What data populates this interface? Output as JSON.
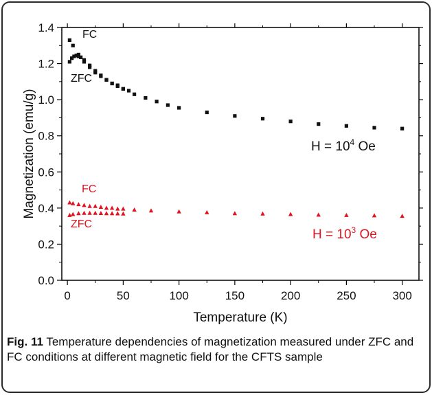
{
  "chart_data": {
    "type": "scatter",
    "xlabel": "Temperature (K)",
    "ylabel": "Magnetization (emu/g)",
    "xlim": [
      -5,
      315
    ],
    "ylim": [
      0.0,
      1.4
    ],
    "xticks": [
      0,
      50,
      100,
      150,
      200,
      250,
      300
    ],
    "yticks": [
      0.0,
      0.2,
      0.4,
      0.6,
      0.8,
      1.0,
      1.2,
      1.4
    ],
    "xtick_labels": [
      "0",
      "50",
      "100",
      "150",
      "200",
      "250",
      "300"
    ],
    "ytick_labels": [
      "0.0",
      "0.2",
      "0.4",
      "0.6",
      "0.8",
      "1.0",
      "1.2",
      "1.4"
    ],
    "grid": false,
    "field_labels": {
      "high": {
        "base": "H = 10",
        "exp": "4",
        "unit": " Oe"
      },
      "low": {
        "base": "H = 10",
        "exp": "3",
        "unit": " Oe"
      }
    },
    "series": [
      {
        "name": "FC",
        "group": "high",
        "marker": "square",
        "color": "#111111",
        "x": [
          2,
          5,
          10,
          15,
          20,
          25,
          30,
          35,
          40,
          45,
          50,
          55,
          60,
          70,
          80,
          90,
          100,
          125,
          150,
          175,
          200,
          225,
          250,
          275,
          300
        ],
        "y": [
          1.33,
          1.3,
          1.25,
          1.21,
          1.18,
          1.15,
          1.13,
          1.11,
          1.09,
          1.08,
          1.06,
          1.05,
          1.03,
          1.01,
          0.99,
          0.97,
          0.955,
          0.93,
          0.91,
          0.895,
          0.88,
          0.865,
          0.855,
          0.845,
          0.84
        ]
      },
      {
        "name": "ZFC",
        "group": "high",
        "marker": "square",
        "color": "#111111",
        "x": [
          2,
          4,
          6,
          8,
          10,
          12,
          15,
          20,
          25,
          30,
          35,
          40,
          45,
          50
        ],
        "y": [
          1.21,
          1.23,
          1.24,
          1.245,
          1.24,
          1.235,
          1.22,
          1.19,
          1.16,
          1.135,
          1.11,
          1.09,
          1.075,
          1.06
        ]
      },
      {
        "name": "FC",
        "group": "low",
        "marker": "triangle",
        "color": "#e0141e",
        "x": [
          2,
          5,
          10,
          15,
          20,
          25,
          30,
          35,
          40,
          45,
          50,
          60,
          75,
          100,
          125,
          150,
          175,
          200,
          225,
          250,
          275,
          300
        ],
        "y": [
          0.43,
          0.425,
          0.42,
          0.415,
          0.41,
          0.41,
          0.405,
          0.4,
          0.4,
          0.395,
          0.395,
          0.39,
          0.385,
          0.38,
          0.375,
          0.37,
          0.368,
          0.365,
          0.362,
          0.36,
          0.358,
          0.355
        ]
      },
      {
        "name": "ZFC",
        "group": "low",
        "marker": "triangle",
        "color": "#e0141e",
        "x": [
          2,
          5,
          10,
          15,
          20,
          25,
          30,
          35,
          40,
          45,
          50
        ],
        "y": [
          0.36,
          0.365,
          0.37,
          0.372,
          0.372,
          0.372,
          0.371,
          0.37,
          0.37,
          0.369,
          0.368
        ]
      }
    ]
  },
  "caption": {
    "fig_label": "Fig. 11",
    "text": " Temperature dependencies of magnetization measured under ZFC and FC conditions at different magnetic field for the CFTS sample"
  }
}
